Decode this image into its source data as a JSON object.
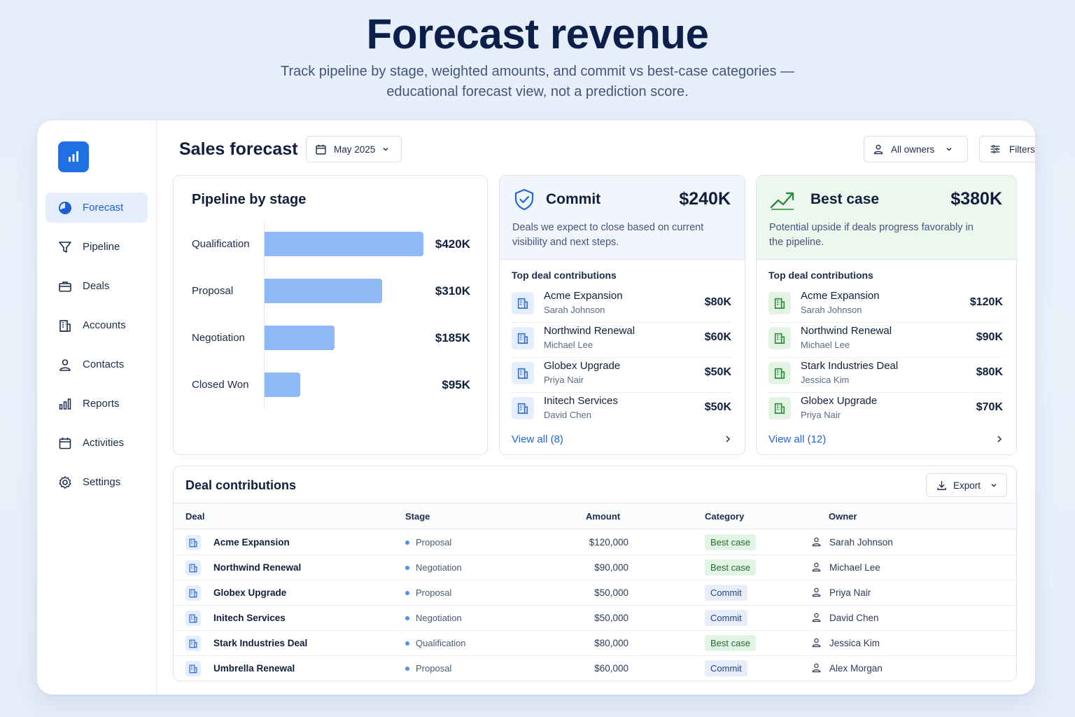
{
  "hero": {
    "title": "Forecast revenue",
    "subtitle": "Track pipeline by stage, weighted amounts, and commit vs best-case categories — educational forecast view, not a prediction score."
  },
  "colors": {
    "accent": "#1f6fe5",
    "bar": "#8fb8f7",
    "best_case_bg": "#e1f3e2",
    "commit_bg": "#e6edf9"
  },
  "sidebar": {
    "logo_icon": "bar-chart-icon",
    "items": [
      {
        "label": "Forecast",
        "icon": "pie-chart-icon",
        "active": true
      },
      {
        "label": "Pipeline",
        "icon": "funnel-icon"
      },
      {
        "label": "Deals",
        "icon": "briefcase-icon"
      },
      {
        "label": "Accounts",
        "icon": "building-icon"
      },
      {
        "label": "Contacts",
        "icon": "person-icon"
      },
      {
        "label": "Reports",
        "icon": "bar-chart-icon"
      },
      {
        "label": "Activities",
        "icon": "calendar-icon"
      },
      {
        "label": "Settings",
        "icon": "gear-icon"
      }
    ]
  },
  "topbar": {
    "title": "Sales forecast",
    "date_label": "May 2025",
    "owners_label": "All owners",
    "filters_label": "Filters"
  },
  "pipeline": {
    "title": "Pipeline by stage",
    "stages": [
      {
        "label": "Qualification",
        "value": 420,
        "display": "$420K"
      },
      {
        "label": "Proposal",
        "value": 310,
        "display": "$310K"
      },
      {
        "label": "Negotiation",
        "value": 185,
        "display": "$185K"
      },
      {
        "label": "Closed Won",
        "value": 95,
        "display": "$95K"
      }
    ]
  },
  "commit": {
    "name": "Commit",
    "amount": "$240K",
    "description": "Deals we expect to close based on current visibility and next steps.",
    "subtitle": "Top deal contributions",
    "deals": [
      {
        "name": "Acme Expansion",
        "owner": "Sarah Johnson",
        "amount": "$80K"
      },
      {
        "name": "Northwind Renewal",
        "owner": "Michael Lee",
        "amount": "$60K"
      },
      {
        "name": "Globex Upgrade",
        "owner": "Priya Nair",
        "amount": "$50K"
      },
      {
        "name": "Initech Services",
        "owner": "David Chen",
        "amount": "$50K"
      }
    ],
    "view_all": "View all (8)"
  },
  "best_case": {
    "name": "Best case",
    "amount": "$380K",
    "description": "Potential upside if deals progress favorably in the pipeline.",
    "subtitle": "Top deal contributions",
    "deals": [
      {
        "name": "Acme Expansion",
        "owner": "Sarah Johnson",
        "amount": "$120K"
      },
      {
        "name": "Northwind Renewal",
        "owner": "Michael Lee",
        "amount": "$90K"
      },
      {
        "name": "Stark Industries Deal",
        "owner": "Jessica Kim",
        "amount": "$80K"
      },
      {
        "name": "Globex Upgrade",
        "owner": "Priya Nair",
        "amount": "$70K"
      }
    ],
    "view_all": "View all (12)"
  },
  "contributions": {
    "title": "Deal contributions",
    "export_label": "Export",
    "columns": [
      "Deal",
      "Stage",
      "Amount",
      "Category",
      "Owner"
    ],
    "rows": [
      {
        "deal": "Acme Expansion",
        "stage": "Proposal",
        "amount": "$120,000",
        "category": "Best case",
        "owner": "Sarah Johnson"
      },
      {
        "deal": "Northwind Renewal",
        "stage": "Negotiation",
        "amount": "$90,000",
        "category": "Best case",
        "owner": "Michael Lee"
      },
      {
        "deal": "Globex Upgrade",
        "stage": "Proposal",
        "amount": "$50,000",
        "category": "Commit",
        "owner": "Priya Nair"
      },
      {
        "deal": "Initech Services",
        "stage": "Negotiation",
        "amount": "$50,000",
        "category": "Commit",
        "owner": "David Chen"
      },
      {
        "deal": "Stark Industries Deal",
        "stage": "Qualification",
        "amount": "$80,000",
        "category": "Best case",
        "owner": "Jessica Kim"
      },
      {
        "deal": "Umbrella Renewal",
        "stage": "Proposal",
        "amount": "$60,000",
        "category": "Commit",
        "owner": "Alex Morgan"
      }
    ]
  }
}
